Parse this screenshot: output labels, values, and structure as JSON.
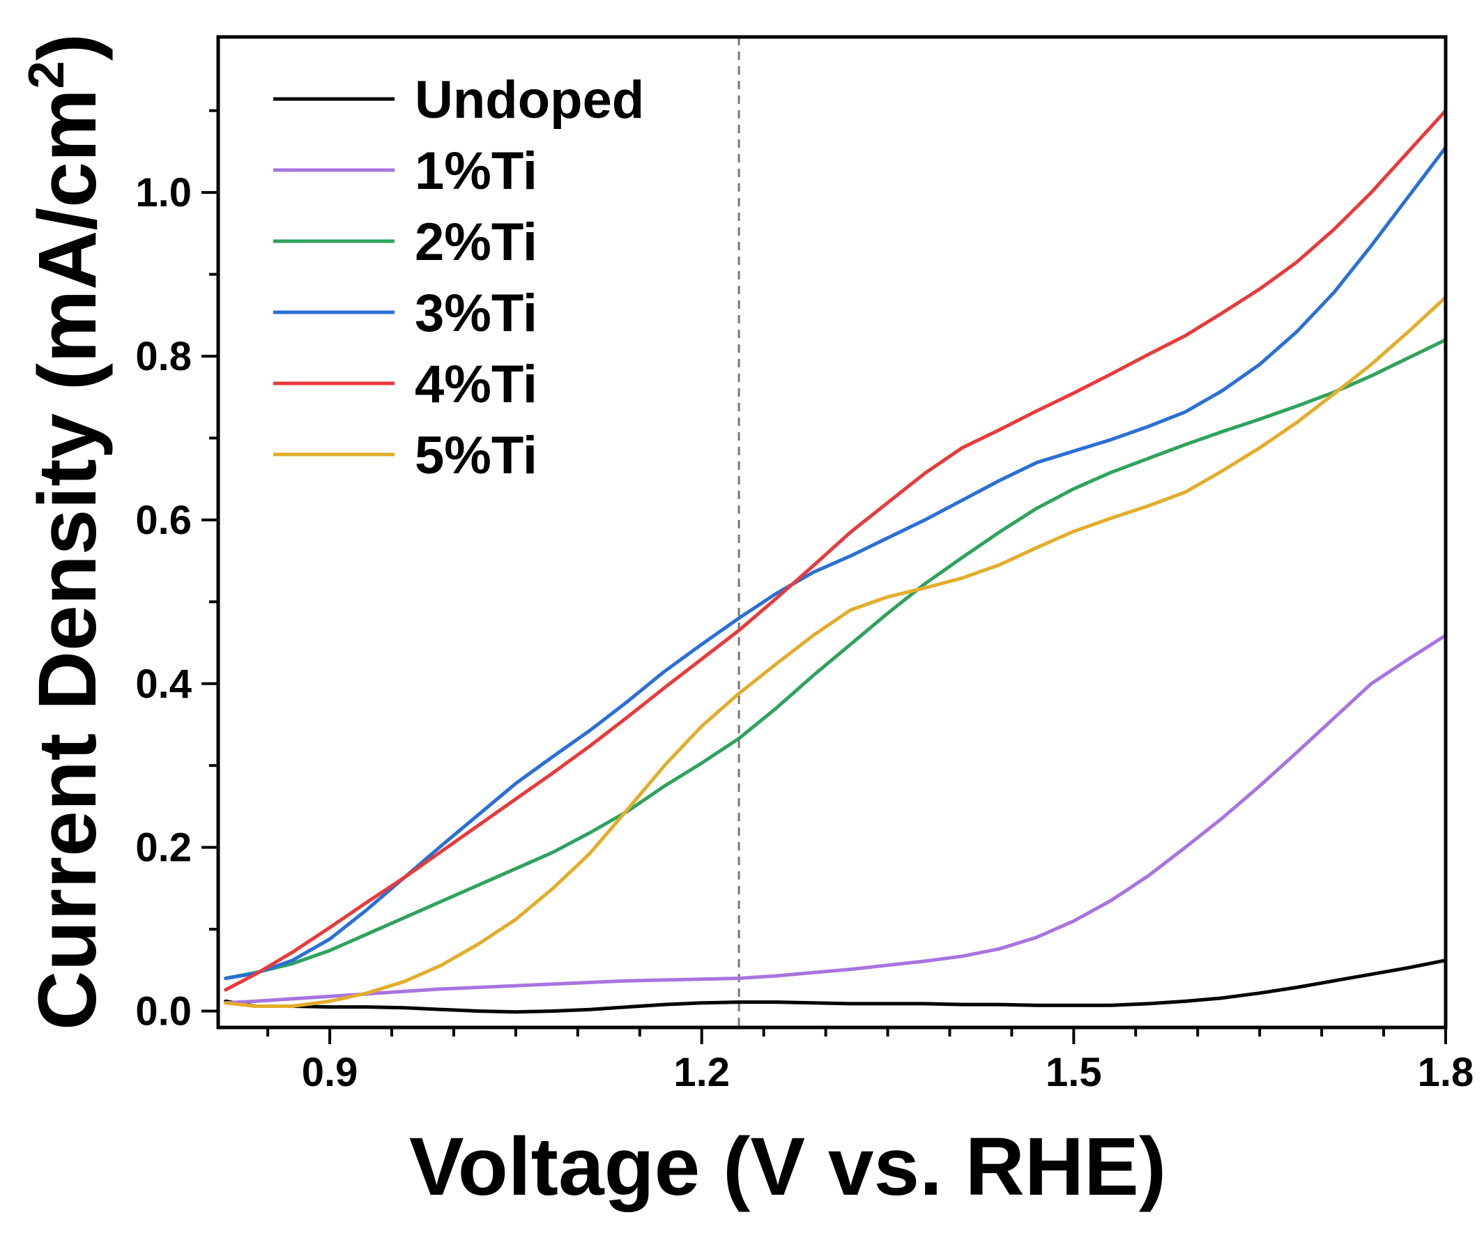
{
  "chart_data": {
    "type": "line",
    "title": "",
    "xlabel": "Voltage (V vs. RHE)",
    "ylabel_main": "Current Density (mA/cm",
    "ylabel_sup": "2",
    "ylabel_close": ")",
    "xlim": [
      0.81,
      1.8
    ],
    "ylim": [
      -0.02,
      1.19
    ],
    "xticks": [
      0.9,
      1.2,
      1.5,
      1.8
    ],
    "xtick_labels": [
      "0.9",
      "1.2",
      "1.5",
      "1.8"
    ],
    "yticks": [
      0.0,
      0.2,
      0.4,
      0.6,
      0.8,
      1.0
    ],
    "ytick_labels": [
      "0.0",
      "0.2",
      "0.4",
      "0.6",
      "0.8",
      "1.0"
    ],
    "reference_line_x": 1.23,
    "legend_position": "top-left",
    "x": [
      0.816,
      0.84,
      0.87,
      0.9,
      0.93,
      0.96,
      0.99,
      1.02,
      1.05,
      1.08,
      1.11,
      1.14,
      1.17,
      1.2,
      1.23,
      1.26,
      1.29,
      1.32,
      1.35,
      1.38,
      1.41,
      1.44,
      1.47,
      1.5,
      1.53,
      1.56,
      1.59,
      1.62,
      1.65,
      1.68,
      1.71,
      1.74,
      1.77,
      1.8
    ],
    "series": [
      {
        "name": "Undoped",
        "color": "#000000",
        "values": [
          0.012,
          0.006,
          0.006,
          0.005,
          0.005,
          0.004,
          0.002,
          0.0,
          -0.001,
          0.0,
          0.002,
          0.005,
          0.008,
          0.01,
          0.011,
          0.011,
          0.01,
          0.009,
          0.009,
          0.009,
          0.008,
          0.008,
          0.007,
          0.007,
          0.007,
          0.009,
          0.012,
          0.016,
          0.022,
          0.029,
          0.037,
          0.045,
          0.053,
          0.062
        ]
      },
      {
        "name": "1%Ti",
        "color": "#a874e0",
        "values": [
          0.01,
          0.012,
          0.015,
          0.018,
          0.021,
          0.024,
          0.027,
          0.029,
          0.031,
          0.033,
          0.035,
          0.037,
          0.038,
          0.039,
          0.04,
          0.043,
          0.047,
          0.051,
          0.056,
          0.061,
          0.067,
          0.076,
          0.09,
          0.11,
          0.135,
          0.165,
          0.2,
          0.236,
          0.275,
          0.316,
          0.358,
          0.4,
          0.43,
          0.459
        ]
      },
      {
        "name": "2%Ti",
        "color": "#2ea35c",
        "values": [
          0.04,
          0.047,
          0.058,
          0.074,
          0.094,
          0.114,
          0.134,
          0.154,
          0.174,
          0.194,
          0.218,
          0.244,
          0.275,
          0.303,
          0.333,
          0.37,
          0.41,
          0.448,
          0.486,
          0.522,
          0.554,
          0.585,
          0.614,
          0.638,
          0.658,
          0.675,
          0.692,
          0.708,
          0.723,
          0.739,
          0.756,
          0.776,
          0.798,
          0.82
        ]
      },
      {
        "name": "3%Ti",
        "color": "#2a6fd6",
        "values": [
          0.04,
          0.046,
          0.062,
          0.088,
          0.124,
          0.163,
          0.202,
          0.24,
          0.278,
          0.311,
          0.343,
          0.378,
          0.415,
          0.448,
          0.48,
          0.51,
          0.536,
          0.556,
          0.578,
          0.6,
          0.624,
          0.648,
          0.67,
          0.684,
          0.698,
          0.714,
          0.732,
          0.758,
          0.79,
          0.83,
          0.878,
          0.935,
          0.995,
          1.055
        ]
      },
      {
        "name": "4%Ti",
        "color": "#e83a3a",
        "values": [
          0.026,
          0.045,
          0.072,
          0.102,
          0.133,
          0.163,
          0.195,
          0.227,
          0.259,
          0.291,
          0.324,
          0.359,
          0.395,
          0.43,
          0.465,
          0.504,
          0.544,
          0.585,
          0.621,
          0.657,
          0.688,
          0.71,
          0.733,
          0.755,
          0.778,
          0.802,
          0.825,
          0.853,
          0.882,
          0.915,
          0.955,
          1.0,
          1.05,
          1.1
        ]
      },
      {
        "name": "5%Ti",
        "color": "#e3ad2a",
        "values": [
          0.01,
          0.006,
          0.006,
          0.012,
          0.022,
          0.036,
          0.056,
          0.082,
          0.112,
          0.15,
          0.193,
          0.246,
          0.3,
          0.348,
          0.388,
          0.424,
          0.459,
          0.49,
          0.506,
          0.517,
          0.529,
          0.545,
          0.566,
          0.586,
          0.602,
          0.617,
          0.634,
          0.66,
          0.688,
          0.719,
          0.754,
          0.79,
          0.83,
          0.872
        ]
      }
    ]
  }
}
